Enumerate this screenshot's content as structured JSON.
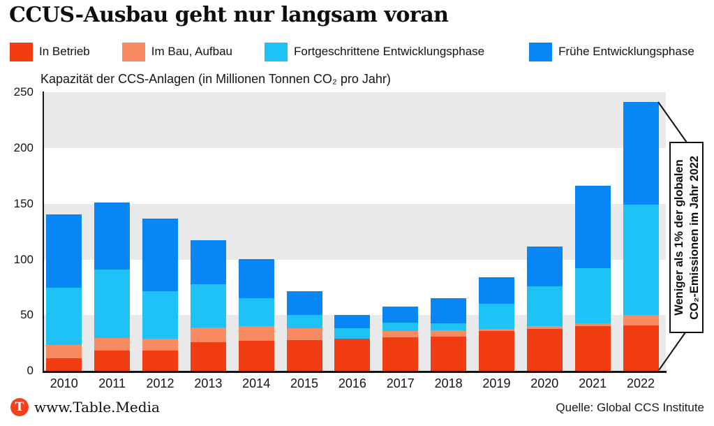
{
  "header": {
    "title": "CCUS-Ausbau geht nur langsam voran"
  },
  "chart_data": {
    "type": "bar",
    "stacked": true,
    "title": "Kapazität der CCS-Anlagen (in Millionen Tonnen CO₂ pro Jahr)",
    "categories": [
      "2010",
      "2011",
      "2012",
      "2013",
      "2014",
      "2015",
      "2016",
      "2017",
      "2018",
      "2019",
      "2020",
      "2021",
      "2022"
    ],
    "series": [
      {
        "name": "In Betrieb",
        "color": "#f23d13",
        "values": [
          11.5,
          18.5,
          18.5,
          26,
          27,
          28,
          29,
          30,
          31,
          36,
          38,
          40,
          41
        ]
      },
      {
        "name": "Im Bau, Aufbau",
        "color": "#f98b63",
        "values": [
          12,
          11,
          10.5,
          13,
          13,
          10.5,
          0,
          6,
          5.5,
          2,
          2,
          3,
          9.5
        ]
      },
      {
        "name": "Fortgeschrittene Entwicklungsphase",
        "color": "#1fc2f6",
        "values": [
          51,
          61.5,
          42.5,
          39,
          25.5,
          12,
          9.5,
          7.5,
          6,
          22,
          36,
          49,
          98.5
        ]
      },
      {
        "name": "Frühe Entwicklungsphase",
        "color": "#0787f5",
        "values": [
          66,
          60,
          65,
          39.5,
          35,
          21,
          11.5,
          14.5,
          23,
          24,
          35.5,
          74,
          92
        ]
      }
    ],
    "totals": [
      140.5,
      151,
      136.5,
      117.5,
      100.5,
      71.5,
      50,
      58,
      65.5,
      84,
      111.5,
      166,
      241
    ],
    "ylim": [
      0,
      250
    ],
    "yticks": [
      0,
      50,
      100,
      150,
      200,
      250
    ],
    "band_ranges": [
      [
        0,
        50
      ],
      [
        100,
        150
      ],
      [
        200,
        250
      ]
    ],
    "band_fill": "#e9e9e9",
    "legend_position": "top",
    "grid": "shaded-bands"
  },
  "annotation": {
    "line1": "Weniger als 1% der globalen",
    "line2": "CO₂-Emissionen im Jahr 2022"
  },
  "footer": {
    "brand_icon": "T",
    "brand": "www.Table.Media",
    "source": "Quelle: Global CCS Institute"
  }
}
